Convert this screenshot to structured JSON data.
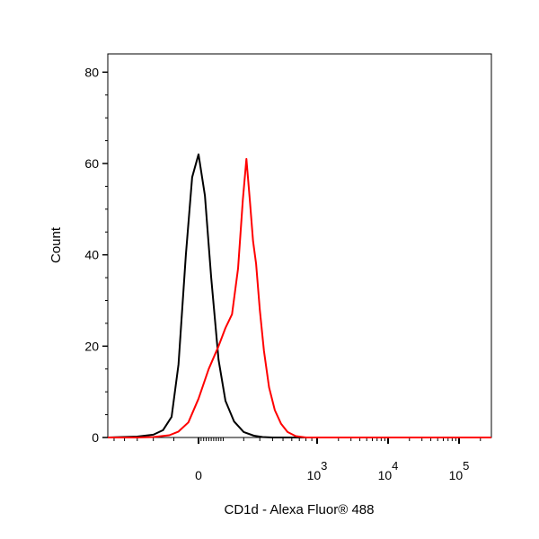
{
  "chart_data": {
    "type": "line",
    "title": "",
    "xlabel": "CD1d - Alexa Fluor® 488",
    "ylabel": "Count",
    "xscale": "biexponential",
    "ylim": [
      0,
      84
    ],
    "y_ticks": [
      0,
      20,
      40,
      60,
      80
    ],
    "x_ticks": [
      {
        "value": 0,
        "base": "0",
        "exp": ""
      },
      {
        "value": 1000,
        "base": "10",
        "exp": "3"
      },
      {
        "value": 10000,
        "base": "10",
        "exp": "4"
      },
      {
        "value": 100000,
        "base": "10",
        "exp": "5"
      }
    ],
    "grid": false,
    "legend": "none",
    "series": [
      {
        "color": "#000000",
        "x": [
          -600,
          -300,
          -200,
          -150,
          -110,
          -80,
          -50,
          -25,
          0,
          25,
          50,
          80,
          110,
          150,
          200,
          260,
          320,
          400
        ],
        "y": [
          0,
          0.2,
          0.6,
          1.6,
          4.5,
          16,
          40,
          57,
          62,
          53,
          35,
          17,
          8,
          3.5,
          1.2,
          0.4,
          0.1,
          0
        ]
      },
      {
        "color": "#ff0000",
        "x": [
          -300,
          -200,
          -120,
          -80,
          -40,
          0,
          40,
          80,
          110,
          140,
          170,
          195,
          215,
          235,
          255,
          275,
          300,
          330,
          370,
          420,
          480,
          550,
          650,
          800,
          1000,
          2000,
          100000
        ],
        "y": [
          0,
          0.1,
          0.5,
          1.3,
          3.3,
          8.5,
          15,
          20,
          24,
          27,
          37,
          52,
          61,
          52,
          43,
          38,
          28,
          19,
          11,
          6,
          3,
          1.2,
          0.3,
          0,
          0,
          0,
          0
        ]
      }
    ]
  }
}
